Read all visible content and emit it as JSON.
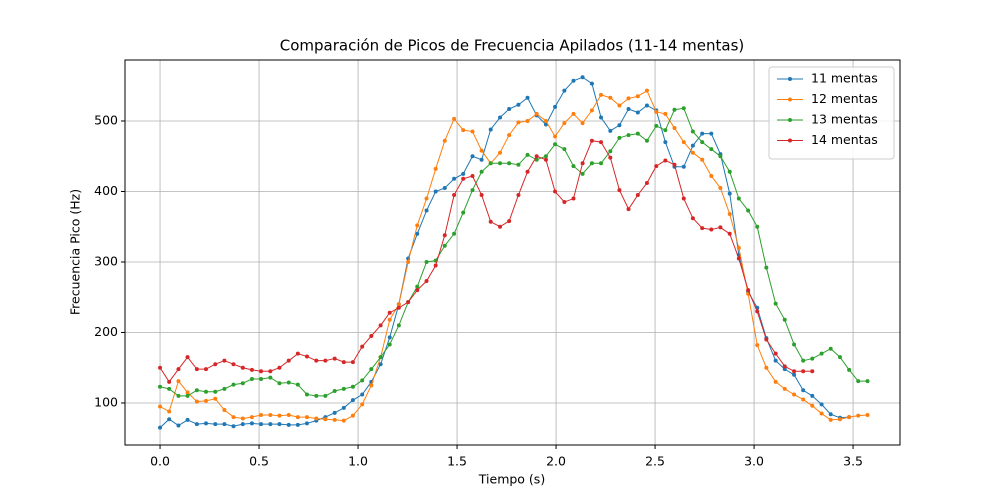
{
  "chart_data": {
    "type": "line",
    "title": "Comparación de Picos de Frecuencia Apilados (11-14 mentas)",
    "xlabel": "Tiempo (s)",
    "ylabel": "Frecuencia Pico (Hz)",
    "x": [
      0,
      0.046,
      0.093,
      0.139,
      0.186,
      0.232,
      0.279,
      0.325,
      0.371,
      0.418,
      0.464,
      0.51,
      0.557,
      0.603,
      0.65,
      0.696,
      0.742,
      0.789,
      0.835,
      0.882,
      0.928,
      0.974,
      1.021,
      1.067,
      1.114,
      1.16,
      1.206,
      1.253,
      1.299,
      1.346,
      1.392,
      1.438,
      1.485,
      1.531,
      1.578,
      1.624,
      1.67,
      1.717,
      1.763,
      1.81,
      1.856,
      1.902,
      1.949,
      1.995,
      2.042,
      2.088,
      2.134,
      2.181,
      2.227,
      2.274,
      2.32,
      2.366,
      2.413,
      2.459,
      2.506,
      2.552,
      2.598,
      2.645,
      2.691,
      2.738,
      2.784,
      2.83,
      2.877,
      2.923,
      2.97,
      3.016,
      3.062,
      3.109,
      3.155,
      3.202,
      3.248,
      3.294,
      3.341,
      3.387,
      3.434,
      3.48,
      3.526,
      3.573
    ],
    "series": [
      {
        "name": "11 mentas",
        "color": "#1f77b4",
        "values": [
          65,
          77,
          68,
          76,
          70,
          71,
          70,
          70,
          67,
          70,
          71,
          70,
          70,
          70,
          69,
          69,
          71,
          75,
          80,
          86,
          93,
          104,
          112,
          130,
          155,
          193,
          240,
          305,
          340,
          373,
          400,
          405,
          418,
          425,
          450,
          445,
          488,
          505,
          517,
          523,
          533,
          508,
          495,
          520,
          543,
          557,
          562,
          553,
          505,
          486,
          494,
          517,
          512,
          522,
          515,
          470,
          435,
          435,
          465,
          482,
          482,
          453,
          397,
          310,
          258,
          235,
          192,
          160,
          148,
          140,
          118,
          110,
          98,
          84,
          79,
          80,
          null,
          null
        ]
      },
      {
        "name": "12 mentas",
        "color": "#ff7f0e",
        "values": [
          95,
          88,
          131,
          115,
          102,
          103,
          106,
          90,
          80,
          78,
          80,
          83,
          83,
          82,
          83,
          80,
          80,
          78,
          77,
          76,
          75,
          82,
          98,
          125,
          165,
          218,
          240,
          300,
          352,
          390,
          432,
          472,
          503,
          487,
          485,
          458,
          440,
          455,
          480,
          498,
          500,
          510,
          500,
          478,
          497,
          510,
          497,
          515,
          537,
          533,
          522,
          532,
          535,
          543,
          513,
          510,
          490,
          470,
          455,
          445,
          422,
          405,
          368,
          320,
          255,
          182,
          150,
          130,
          120,
          112,
          105,
          96,
          85,
          76,
          77,
          80,
          82,
          83
        ]
      },
      {
        "name": "13 mentas",
        "color": "#2ca02c",
        "values": [
          123,
          120,
          110,
          110,
          118,
          116,
          116,
          120,
          126,
          128,
          134,
          134,
          136,
          128,
          129,
          126,
          112,
          110,
          110,
          117,
          120,
          123,
          132,
          148,
          165,
          183,
          210,
          243,
          265,
          300,
          302,
          323,
          340,
          370,
          402,
          428,
          440,
          440,
          440,
          438,
          452,
          445,
          450,
          467,
          460,
          436,
          425,
          440,
          440,
          457,
          476,
          480,
          482,
          472,
          493,
          487,
          516,
          518,
          485,
          470,
          460,
          450,
          428,
          390,
          373,
          350,
          292,
          241,
          218,
          183,
          160,
          163,
          170,
          177,
          165,
          147,
          131,
          131
        ]
      },
      {
        "name": "14 mentas",
        "color": "#d62728",
        "values": [
          150,
          130,
          148,
          165,
          148,
          148,
          155,
          160,
          155,
          150,
          147,
          145,
          145,
          150,
          160,
          170,
          166,
          160,
          160,
          163,
          158,
          158,
          180,
          195,
          210,
          228,
          235,
          243,
          260,
          273,
          295,
          338,
          395,
          418,
          422,
          395,
          357,
          350,
          358,
          395,
          428,
          450,
          445,
          400,
          385,
          390,
          440,
          472,
          470,
          448,
          402,
          375,
          395,
          412,
          436,
          444,
          438,
          390,
          362,
          348,
          346,
          349,
          340,
          305,
          260,
          230,
          190,
          170,
          152,
          145,
          145,
          145,
          null,
          null,
          null,
          null,
          null,
          null
        ]
      }
    ],
    "xlim": [
      -0.177,
      3.737
    ],
    "ylim": [
      40.4,
      586.5
    ],
    "xticks": [
      {
        "value": 0,
        "label": "0.0"
      },
      {
        "value": 0.5,
        "label": "0.5"
      },
      {
        "value": 1,
        "label": "1.0"
      },
      {
        "value": 1.5,
        "label": "1.5"
      },
      {
        "value": 2,
        "label": "2.0"
      },
      {
        "value": 2.5,
        "label": "2.5"
      },
      {
        "value": 3,
        "label": "3.0"
      },
      {
        "value": 3.5,
        "label": "3.5"
      }
    ],
    "yticks": [
      100,
      200,
      300,
      400,
      500
    ],
    "grid": true,
    "legend": "upper right"
  }
}
